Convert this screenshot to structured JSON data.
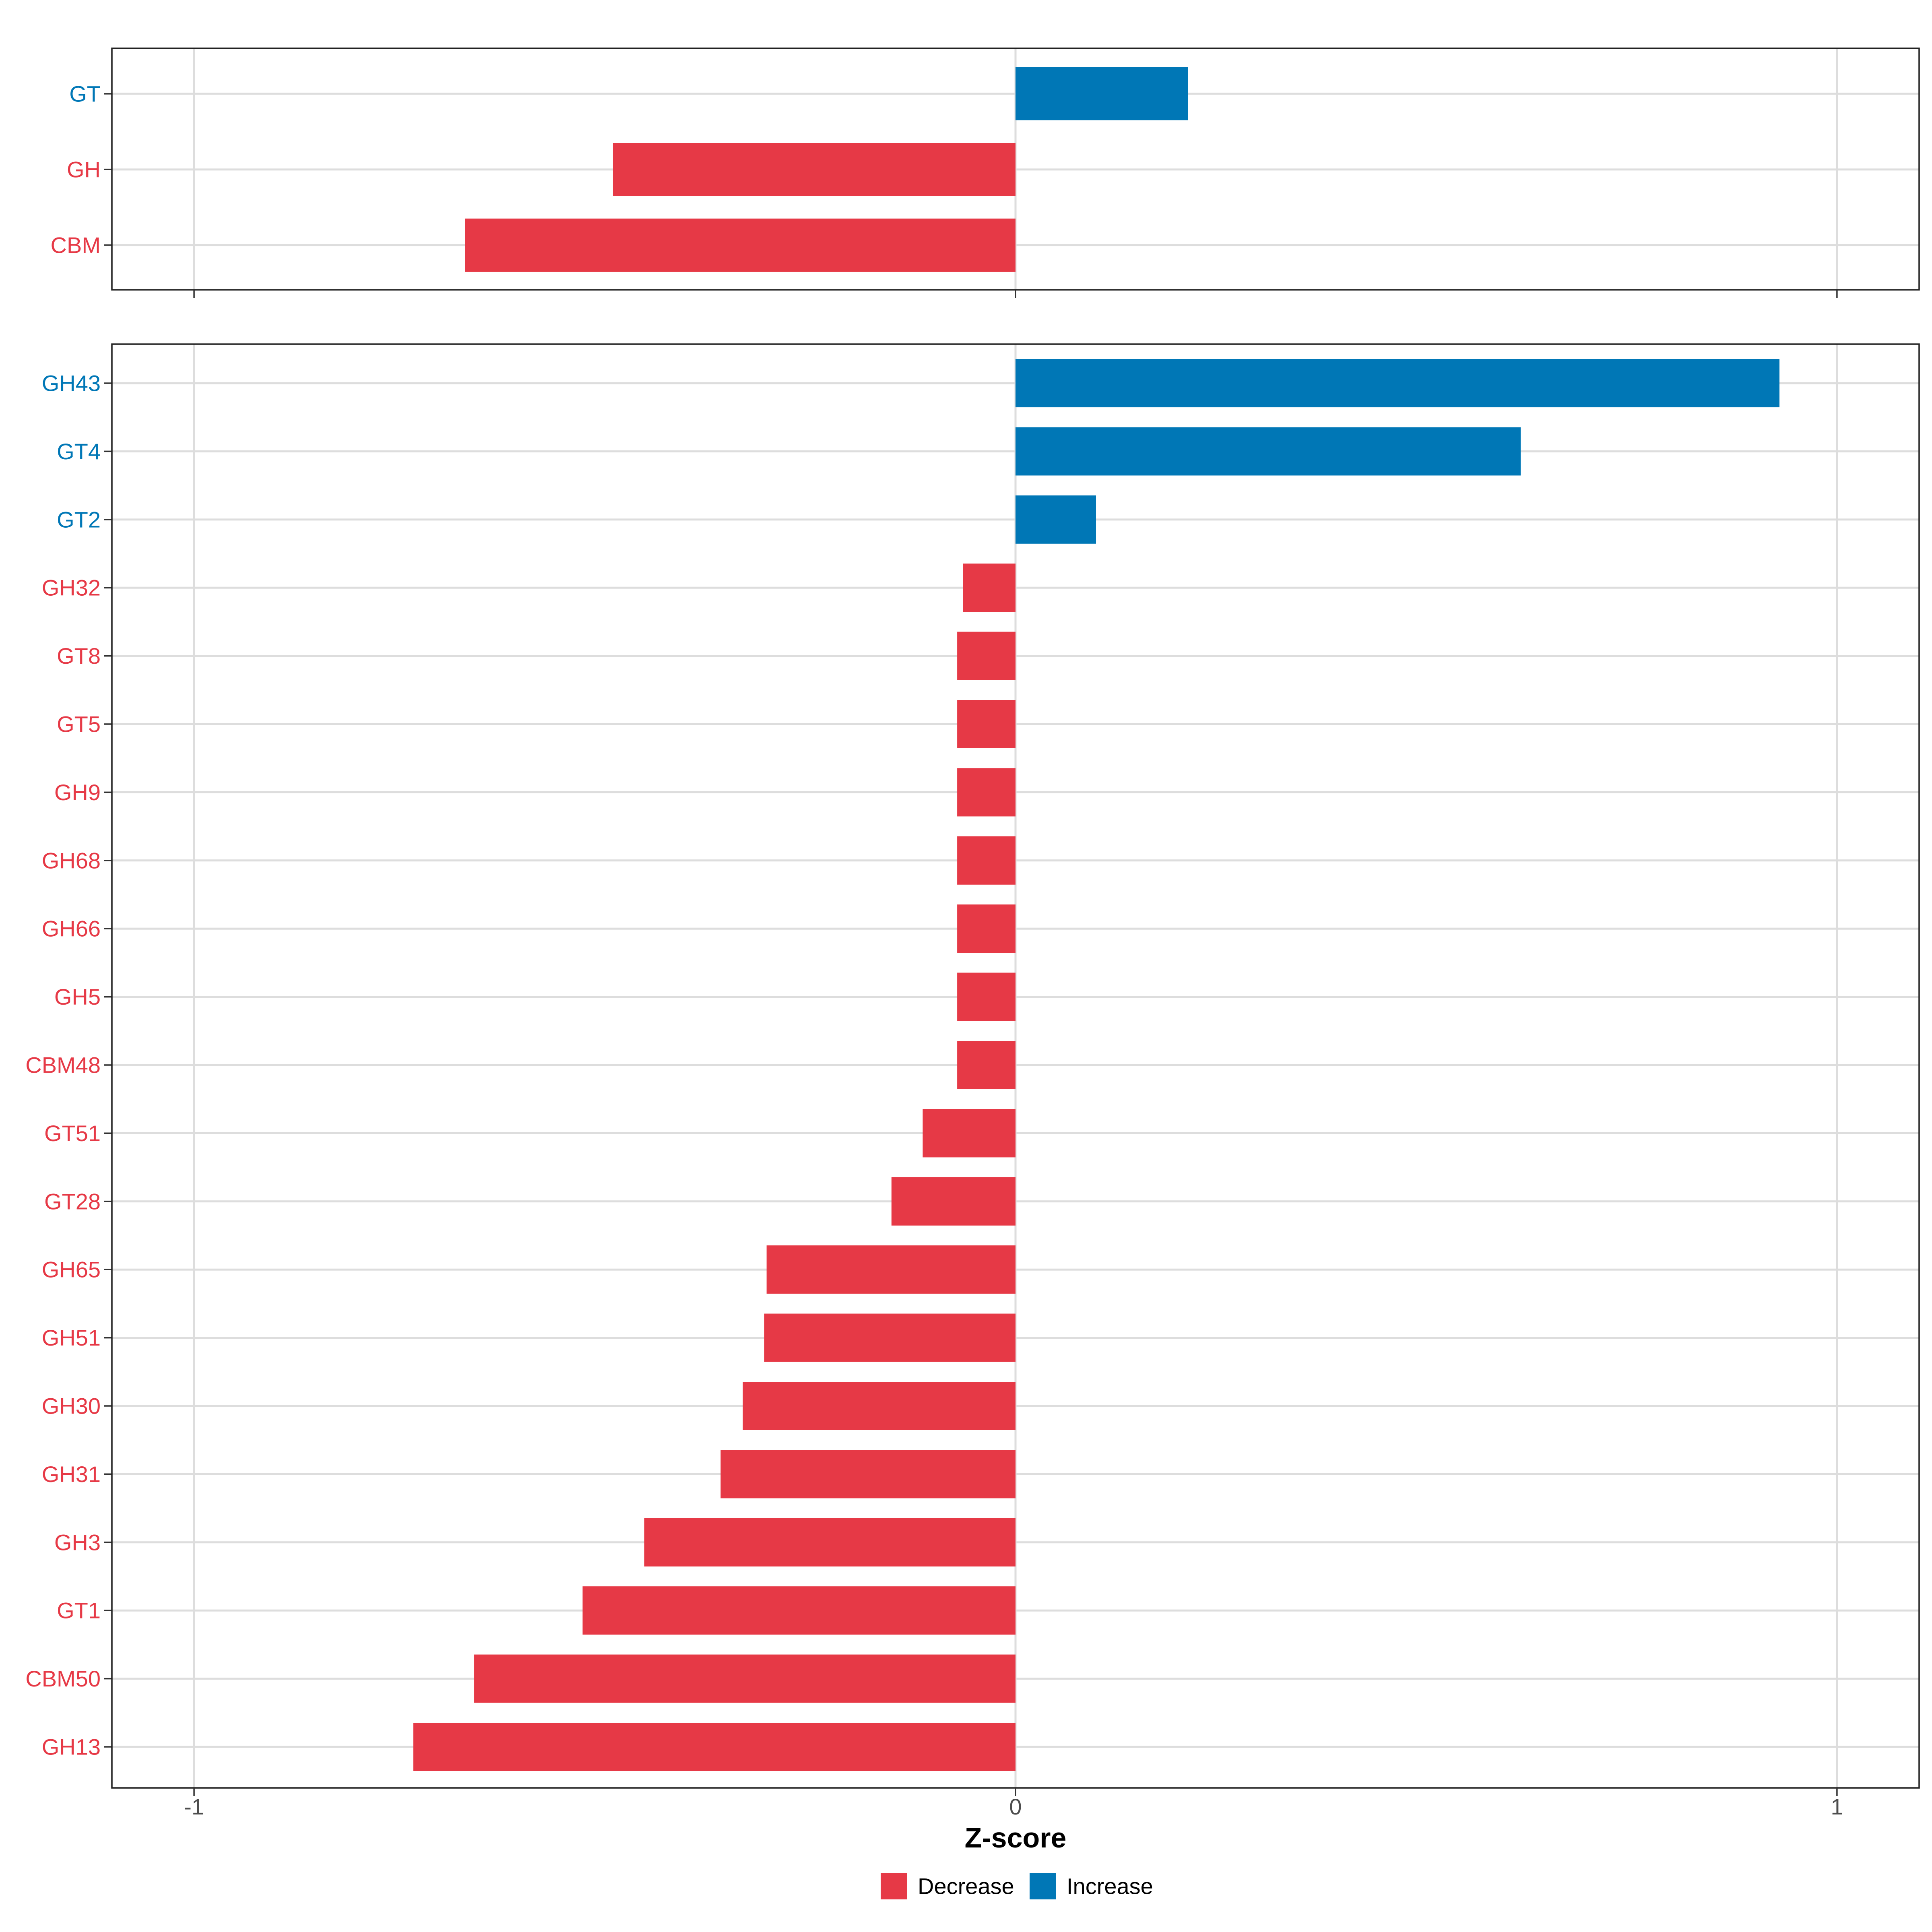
{
  "colors": {
    "decrease": "#E63946",
    "increase": "#0077B6"
  },
  "chart_data": {
    "type": "bar",
    "orientation": "horizontal",
    "xlabel": "Z-score",
    "xlim": [
      -1.1,
      1.1
    ],
    "xticks": [
      {
        "value": -1,
        "label": "-1"
      },
      {
        "value": 0,
        "label": "0"
      },
      {
        "value": 1,
        "label": "1"
      }
    ],
    "grid": true,
    "legend": {
      "position": "bottom",
      "entries": [
        {
          "label": "Decrease",
          "group": "decrease"
        },
        {
          "label": "Increase",
          "group": "increase"
        }
      ]
    },
    "panels": [
      {
        "categories": [
          "GT",
          "GH",
          "CBM"
        ],
        "values": [
          0.21,
          -0.49,
          -0.67
        ],
        "groups": [
          "increase",
          "decrease",
          "decrease"
        ]
      },
      {
        "categories": [
          "GH43",
          "GT4",
          "GT2",
          "GH32",
          "GT8",
          "GT5",
          "GH9",
          "GH68",
          "GH66",
          "GH5",
          "CBM48",
          "GT51",
          "GT28",
          "GH65",
          "GH51",
          "GH30",
          "GH31",
          "GH3",
          "GT1",
          "CBM50",
          "GH13"
        ],
        "values": [
          0.93,
          0.615,
          0.098,
          -0.064,
          -0.071,
          -0.071,
          -0.071,
          -0.071,
          -0.071,
          -0.071,
          -0.071,
          -0.113,
          -0.151,
          -0.303,
          -0.306,
          -0.332,
          -0.359,
          -0.452,
          -0.527,
          -0.659,
          -0.733
        ],
        "groups": [
          "increase",
          "increase",
          "increase",
          "decrease",
          "decrease",
          "decrease",
          "decrease",
          "decrease",
          "decrease",
          "decrease",
          "decrease",
          "decrease",
          "decrease",
          "decrease",
          "decrease",
          "decrease",
          "decrease",
          "decrease",
          "decrease",
          "decrease",
          "decrease"
        ]
      }
    ]
  }
}
